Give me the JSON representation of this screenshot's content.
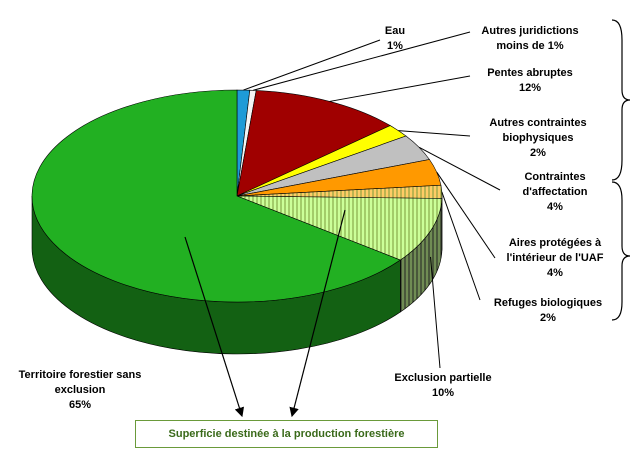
{
  "chart_data": {
    "type": "pie3d",
    "categories": [
      "Eau",
      "Autres juridictions",
      "Pentes abruptes",
      "Autres contraintes biophysiques",
      "Contraintes d'affectation",
      "Aires protégées à l'intérieur de l'UAF",
      "Refuges biologiques",
      "Exclusion partielle",
      "Territoire forestier sans exclusion"
    ],
    "values": [
      1,
      0.5,
      12,
      2,
      4,
      4,
      2,
      10,
      65
    ],
    "value_labels": [
      "1%",
      "moins de 1%",
      "12%",
      "2%",
      "4%",
      "4%",
      "2%",
      "10%",
      "65%"
    ],
    "colors": [
      "#1e9bd7",
      "#f4f4f4",
      "#a00000",
      "#ffff00",
      "#c0c0c0",
      "#ff9900",
      "#ffcc66",
      "#ccff99",
      "#22b022"
    ],
    "hatched": [
      false,
      false,
      false,
      false,
      false,
      false,
      true,
      true,
      false
    ],
    "annotation": "Superficie destinée à la production forestière"
  }
}
